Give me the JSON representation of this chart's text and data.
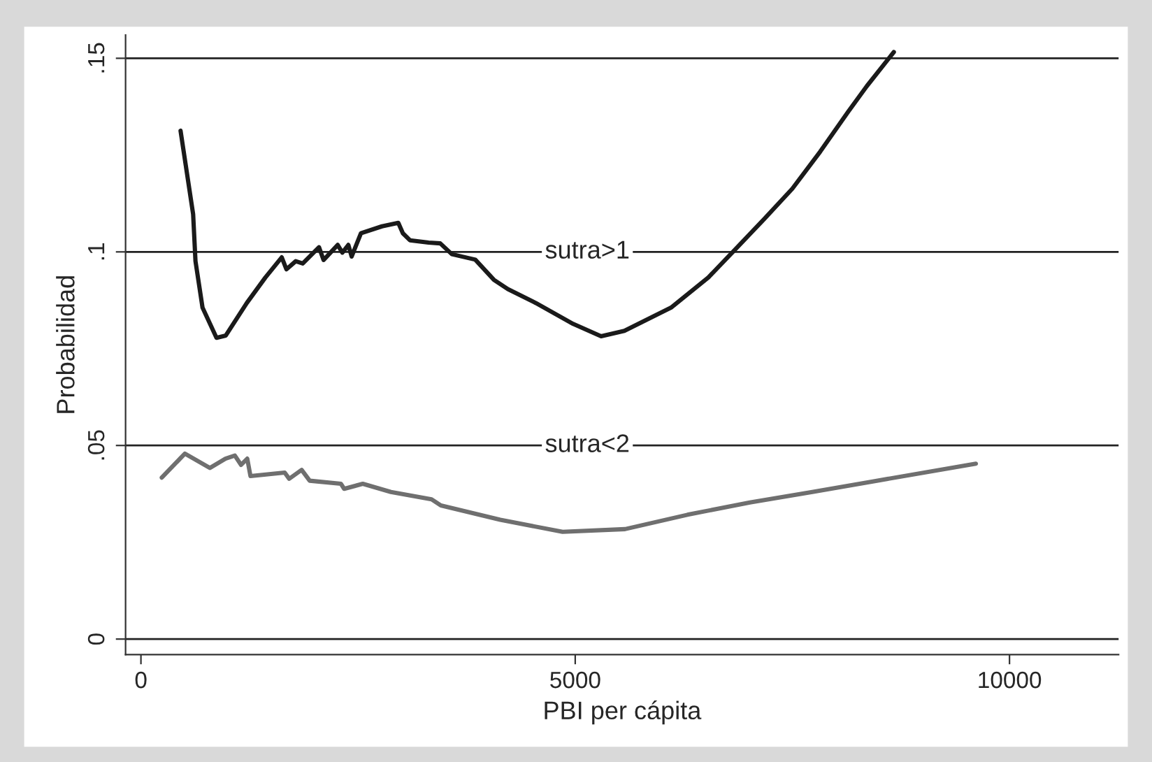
{
  "chart_data": {
    "type": "line",
    "xlabel": "PBI per cápita",
    "ylabel": "Probabilidad",
    "xlim": [
      -177,
      11256
    ],
    "ylim": [
      -0.004,
      0.156
    ],
    "xticks": [
      0,
      5000,
      10000
    ],
    "yticks": [
      {
        "value": 0,
        "label": "0"
      },
      {
        "value": 0.05,
        "label": ".05"
      },
      {
        "value": 0.1,
        "label": ".1"
      },
      {
        "value": 0.15,
        "label": ".15"
      }
    ],
    "legend": false,
    "marker": "none",
    "line_style": "solid",
    "ref_lines": [
      {
        "axis": "y",
        "value": 0,
        "color": "#222222"
      },
      {
        "axis": "y",
        "value": 0.15,
        "color": "#222222"
      },
      {
        "axis": "y",
        "value": 0.1,
        "label": "sutra>1",
        "color": "#222222"
      },
      {
        "axis": "y",
        "value": 0.05,
        "label": "sutra<2",
        "color": "#222222"
      }
    ],
    "series": [
      {
        "color": "#1a1a1a",
        "x": [
          456,
          601,
          628,
          709,
          870,
          977,
          1219,
          1433,
          1621,
          1675,
          1782,
          1863,
          2050,
          2103,
          2265,
          2319,
          2388,
          2426,
          2533,
          2775,
          2963,
          3016,
          3097,
          3312,
          3446,
          3580,
          3849,
          4063,
          4224,
          4546,
          4976,
          5298,
          5566,
          6103,
          6533,
          6828,
          7177,
          7499,
          7821,
          8143,
          8357,
          8668
        ],
        "values": [
          0.1313,
          0.1097,
          0.0976,
          0.0856,
          0.0778,
          0.0784,
          0.0868,
          0.0934,
          0.0986,
          0.0955,
          0.0976,
          0.097,
          0.1012,
          0.0979,
          0.1018,
          0.0998,
          0.1018,
          0.0988,
          0.1048,
          0.1066,
          0.1075,
          0.1048,
          0.103,
          0.1024,
          0.1022,
          0.0994,
          0.098,
          0.0928,
          0.0904,
          0.0868,
          0.0814,
          0.0782,
          0.0796,
          0.0856,
          0.0934,
          0.1003,
          0.1085,
          0.1163,
          0.1259,
          0.1362,
          0.1428,
          0.1516
        ]
      },
      {
        "color": "#6f6f6f",
        "x": [
          240,
          506,
          794,
          973,
          1081,
          1153,
          1224,
          1261,
          1655,
          1707,
          1850,
          1943,
          2303,
          2340,
          2554,
          2878,
          3346,
          3453,
          4137,
          4855,
          5573,
          6292,
          7011,
          7729,
          8449,
          9613
        ],
        "values": [
          0.0417,
          0.0479,
          0.0442,
          0.0466,
          0.0474,
          0.045,
          0.0466,
          0.0421,
          0.043,
          0.0414,
          0.0437,
          0.0409,
          0.0401,
          0.0388,
          0.0401,
          0.038,
          0.0361,
          0.0345,
          0.0308,
          0.0277,
          0.0284,
          0.0321,
          0.0353,
          0.038,
          0.0408,
          0.0453
        ]
      }
    ]
  }
}
